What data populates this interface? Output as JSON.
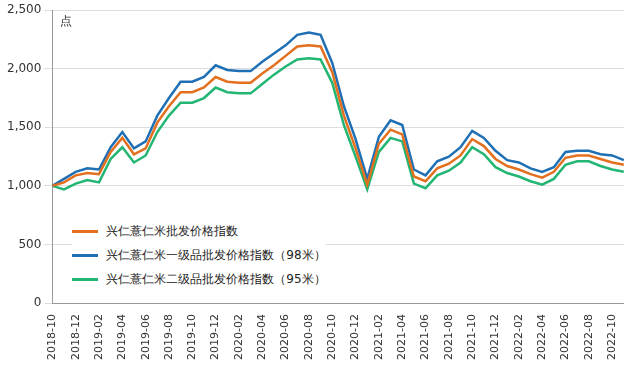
{
  "chart_data": {
    "type": "line",
    "ylabel": "点",
    "categories": [
      "2018-10",
      null,
      "2018-12",
      null,
      "2019-02",
      null,
      "2019-04",
      null,
      "2019-06",
      null,
      "2019-08",
      null,
      "2019-10",
      null,
      "2019-12",
      null,
      "2020-02",
      null,
      "2020-04",
      null,
      "2020-06",
      null,
      "2020-08",
      null,
      "2020-10",
      null,
      "2020-12",
      null,
      "2021-02",
      null,
      "2021-04",
      null,
      "2021-06",
      null,
      "2021-08",
      null,
      "2021-10",
      null,
      "2021-12",
      null,
      "2022-02",
      null,
      "2022-04",
      null,
      "2022-06",
      null,
      "2022-08",
      null,
      "2022-10",
      null
    ],
    "series": [
      {
        "name": "兴仁薏仁米批发价格指数",
        "color": "#e2701e",
        "values": [
          1000,
          1030,
          1090,
          1110,
          1100,
          1290,
          1410,
          1270,
          1320,
          1540,
          1680,
          1800,
          1800,
          1840,
          1930,
          1890,
          1880,
          1880,
          1960,
          2030,
          2110,
          2190,
          2200,
          2190,
          1970,
          1600,
          1320,
          1010,
          1360,
          1480,
          1440,
          1080,
          1040,
          1150,
          1190,
          1260,
          1400,
          1340,
          1230,
          1170,
          1140,
          1100,
          1070,
          1120,
          1240,
          1260,
          1260,
          1230,
          1200,
          1180
        ]
      },
      {
        "name": "兴仁薏仁米一级品批发价格指数（98米）",
        "color": "#1f6fb5",
        "values": [
          1000,
          1060,
          1120,
          1150,
          1140,
          1330,
          1460,
          1320,
          1380,
          1600,
          1750,
          1890,
          1890,
          1930,
          2030,
          1990,
          1980,
          1980,
          2060,
          2130,
          2200,
          2290,
          2310,
          2290,
          2050,
          1680,
          1400,
          1060,
          1420,
          1560,
          1520,
          1140,
          1090,
          1210,
          1250,
          1330,
          1470,
          1410,
          1300,
          1220,
          1200,
          1150,
          1120,
          1160,
          1290,
          1300,
          1300,
          1270,
          1260,
          1220
        ]
      },
      {
        "name": "兴仁薏仁米二级品批发价格指数（95米）",
        "color": "#22b573",
        "values": [
          1000,
          970,
          1020,
          1050,
          1030,
          1230,
          1330,
          1200,
          1260,
          1460,
          1600,
          1710,
          1710,
          1750,
          1840,
          1800,
          1790,
          1790,
          1870,
          1950,
          2020,
          2080,
          2090,
          2080,
          1880,
          1520,
          1250,
          970,
          1290,
          1410,
          1380,
          1020,
          980,
          1090,
          1130,
          1200,
          1330,
          1270,
          1160,
          1110,
          1080,
          1040,
          1010,
          1060,
          1180,
          1210,
          1210,
          1170,
          1140,
          1120
        ]
      }
    ],
    "ylim": [
      0,
      2500
    ],
    "yticks": [
      0,
      500,
      1000,
      1500,
      2000,
      2500
    ],
    "grid": "y",
    "legend": "lower left"
  }
}
